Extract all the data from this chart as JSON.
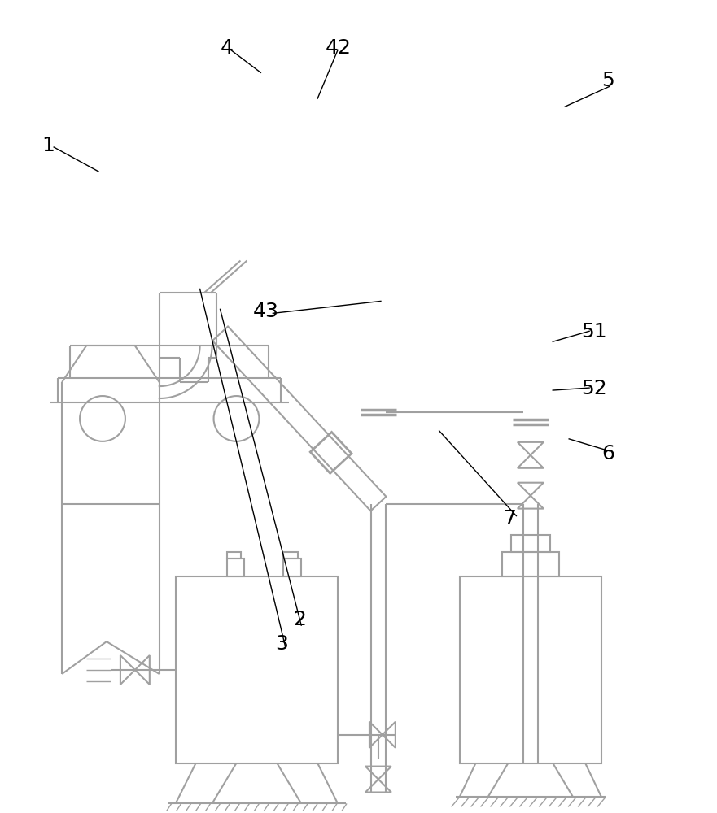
{
  "bg_color": "#ffffff",
  "lc": "#a0a0a0",
  "lc_black": "#000000",
  "lw": 1.5,
  "lw_t": 1.0,
  "lw_thick": 2.5,
  "figsize": [
    8.81,
    10.0
  ],
  "dpi": 100
}
